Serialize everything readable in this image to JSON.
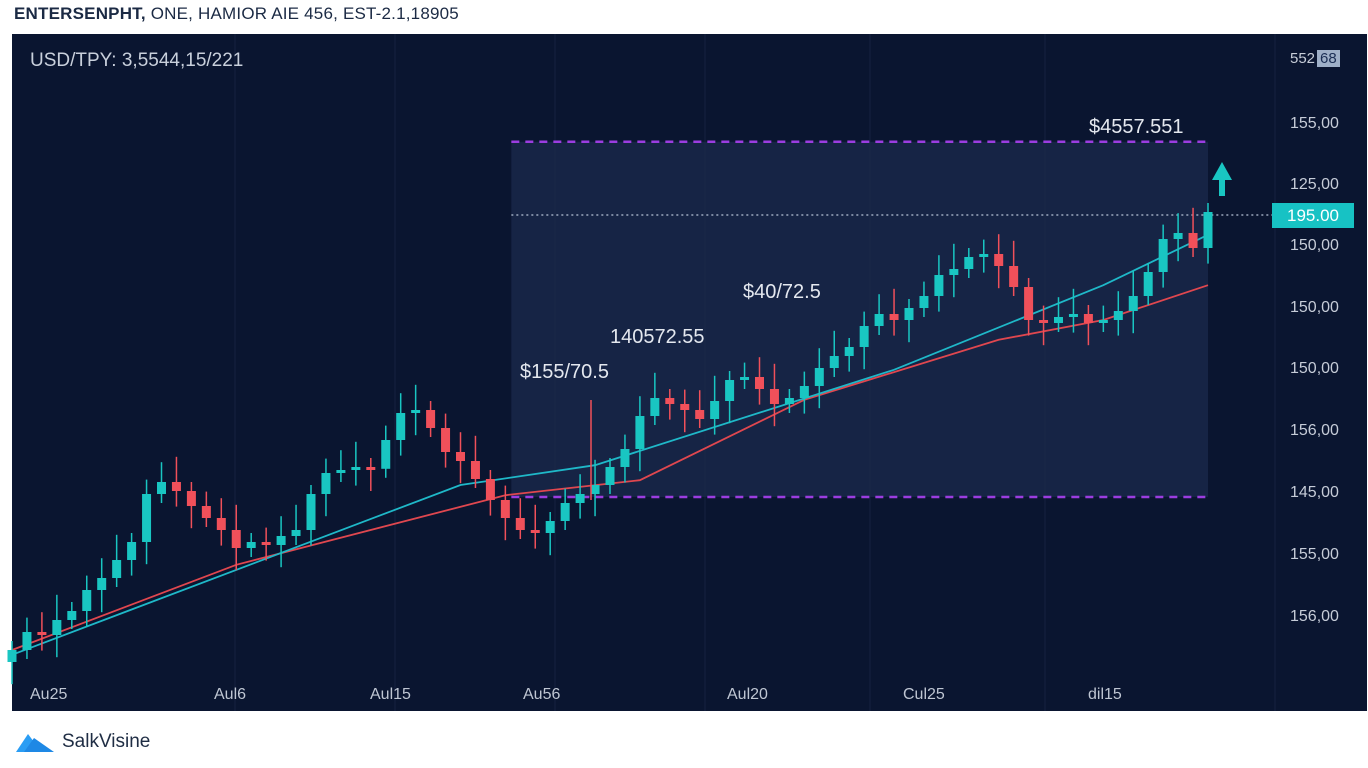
{
  "header": {
    "title_bold": "ENTERSENPHT,",
    "title_rest": " ONE, HAMIOR AIE 456, EST-2.1,18905"
  },
  "pair_label": "USD/TPY: 3,5544,15/221",
  "top_right": {
    "text": "552",
    "badge": "68"
  },
  "price_tag": "195.00",
  "y_labels": [
    "155,00",
    "125,00",
    "150,00",
    "150,00",
    "150,00",
    "156,00",
    "145,00",
    "155,00",
    "156,00"
  ],
  "x_labels": [
    "Au25",
    "Aul6",
    "Aul15",
    "Au56",
    "Aul20",
    "Cul25",
    "dil15"
  ],
  "annotations": [
    "$4557.551",
    "$40/72.5",
    "140572.55",
    "$155/70.5"
  ],
  "brand": "SalkVisine",
  "colors": {
    "bg": "#0a1530",
    "up": "#19c6c2",
    "down": "#f0505a",
    "ma_fast": "#1fb8c8",
    "ma_slow": "#e0474f",
    "box": "#9b3de0"
  },
  "chart_data": {
    "type": "candlestick",
    "title": "USD/TPY",
    "ylim": [
      -5,
      108
    ],
    "closes": [
      5,
      8,
      7.5,
      10,
      11.5,
      15,
      17,
      20,
      23,
      31,
      33,
      31.5,
      29,
      27,
      25,
      22,
      23,
      22.5,
      24,
      25,
      31,
      34.5,
      35,
      35.5,
      35.2,
      40,
      44.5,
      45,
      42,
      38,
      36.5,
      33.5,
      30,
      27,
      25,
      24.5,
      26.5,
      29.5,
      31,
      32.5,
      35.5,
      38.5,
      44,
      47,
      46,
      45,
      43.5,
      46.5,
      50,
      50.5,
      48.5,
      46,
      47,
      49,
      52,
      54,
      55.5,
      59,
      61,
      60,
      62,
      64,
      67.5,
      68.5,
      70.5,
      71,
      69,
      65.5,
      60,
      59.5,
      60.5,
      61,
      59.5,
      60,
      61.5,
      64,
      68,
      73.5,
      74.5,
      72,
      78
    ],
    "first_open": 3,
    "ma_fast": [
      [
        0,
        4.2
      ],
      [
        30,
        32.5
      ],
      [
        39,
        35.8
      ],
      [
        59,
        51.7
      ],
      [
        73,
        65.8
      ],
      [
        80,
        74.2
      ]
    ],
    "ma_slow": [
      [
        0,
        5
      ],
      [
        15,
        19.2
      ],
      [
        33,
        30.8
      ],
      [
        42,
        33.3
      ],
      [
        53,
        46.7
      ],
      [
        66,
        56.7
      ],
      [
        73,
        60
      ],
      [
        80,
        65.8
      ]
    ],
    "range_box": {
      "from_index": 33.4,
      "to_index": 80,
      "high": 89.7,
      "low": 30.5
    },
    "current_price_level": 77.5
  }
}
